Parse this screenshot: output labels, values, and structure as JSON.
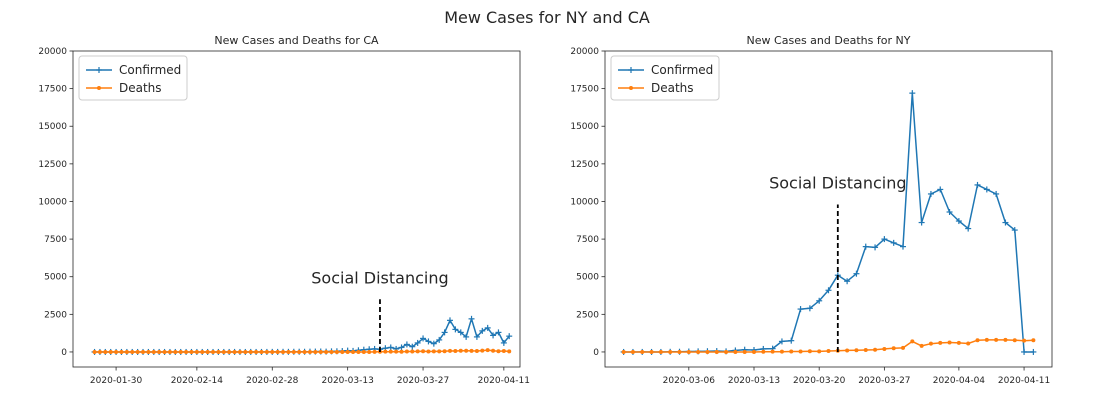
{
  "figure": {
    "suptitle": "Mew Cases for NY and CA"
  },
  "chart_data": [
    {
      "type": "line",
      "title": "New Cases and Deaths for CA",
      "xlabel": "",
      "ylabel": "",
      "ylim": [
        -1000,
        20000
      ],
      "yticks": [
        0,
        2500,
        5000,
        7500,
        10000,
        12500,
        15000,
        17500,
        20000
      ],
      "ytick_labels": [
        "0",
        "2500",
        "5000",
        "7500",
        "10000",
        "12500",
        "15000",
        "17500",
        "20000"
      ],
      "xlim": [
        "2020-01-22",
        "2020-04-14"
      ],
      "xticks": [
        "2020-01-30",
        "2020-02-14",
        "2020-02-28",
        "2020-03-13",
        "2020-03-27",
        "2020-04-11"
      ],
      "grid": false,
      "legend": "top-left",
      "annotation": {
        "text": "Social Distancing",
        "x": "2020-03-19",
        "line_from": 0,
        "line_to": 3500
      },
      "x": [
        "2020-01-26",
        "2020-01-27",
        "2020-01-28",
        "2020-01-29",
        "2020-01-30",
        "2020-01-31",
        "2020-02-01",
        "2020-02-02",
        "2020-02-03",
        "2020-02-04",
        "2020-02-05",
        "2020-02-06",
        "2020-02-07",
        "2020-02-08",
        "2020-02-09",
        "2020-02-10",
        "2020-02-11",
        "2020-02-12",
        "2020-02-13",
        "2020-02-14",
        "2020-02-15",
        "2020-02-16",
        "2020-02-17",
        "2020-02-18",
        "2020-02-19",
        "2020-02-20",
        "2020-02-21",
        "2020-02-22",
        "2020-02-23",
        "2020-02-24",
        "2020-02-25",
        "2020-02-26",
        "2020-02-27",
        "2020-02-28",
        "2020-02-29",
        "2020-03-01",
        "2020-03-02",
        "2020-03-03",
        "2020-03-04",
        "2020-03-05",
        "2020-03-06",
        "2020-03-07",
        "2020-03-08",
        "2020-03-09",
        "2020-03-10",
        "2020-03-11",
        "2020-03-12",
        "2020-03-13",
        "2020-03-14",
        "2020-03-15",
        "2020-03-16",
        "2020-03-17",
        "2020-03-18",
        "2020-03-19",
        "2020-03-20",
        "2020-03-21",
        "2020-03-22",
        "2020-03-23",
        "2020-03-24",
        "2020-03-25",
        "2020-03-26",
        "2020-03-27",
        "2020-03-28",
        "2020-03-29",
        "2020-03-30",
        "2020-03-31",
        "2020-04-01",
        "2020-04-02",
        "2020-04-03",
        "2020-04-04",
        "2020-04-05",
        "2020-04-06",
        "2020-04-07",
        "2020-04-08",
        "2020-04-09",
        "2020-04-10",
        "2020-04-11",
        "2020-04-12"
      ],
      "series": [
        {
          "name": "Confirmed",
          "color": "#1f77b4",
          "marker": "plus",
          "values": [
            0,
            0,
            0,
            0,
            0,
            0,
            0,
            0,
            0,
            0,
            0,
            0,
            0,
            0,
            0,
            0,
            0,
            0,
            0,
            0,
            0,
            0,
            0,
            0,
            0,
            0,
            2,
            0,
            0,
            3,
            0,
            1,
            2,
            5,
            4,
            10,
            8,
            12,
            15,
            13,
            20,
            25,
            30,
            22,
            40,
            45,
            60,
            90,
            70,
            110,
            150,
            180,
            200,
            180,
            250,
            300,
            200,
            300,
            500,
            350,
            600,
            900,
            700,
            550,
            800,
            1300,
            2100,
            1500,
            1300,
            1000,
            2200,
            1000,
            1400,
            1600,
            1100,
            1300,
            600,
            1050
          ]
        },
        {
          "name": "Deaths",
          "color": "#ff7f0e",
          "marker": "dot",
          "values": [
            0,
            0,
            0,
            0,
            0,
            0,
            0,
            0,
            0,
            0,
            0,
            0,
            0,
            0,
            0,
            0,
            0,
            0,
            0,
            0,
            0,
            0,
            0,
            0,
            0,
            0,
            0,
            0,
            0,
            0,
            0,
            0,
            0,
            0,
            0,
            0,
            0,
            0,
            0,
            0,
            0,
            0,
            0,
            0,
            0,
            0,
            0,
            0,
            0,
            0,
            0,
            0,
            5,
            10,
            20,
            20,
            25,
            10,
            30,
            30,
            40,
            50,
            30,
            40,
            40,
            50,
            70,
            60,
            80,
            80,
            70,
            60,
            90,
            120,
            80,
            50,
            60,
            40
          ]
        }
      ]
    },
    {
      "type": "line",
      "title": "New Cases and Deaths for NY",
      "xlabel": "",
      "ylabel": "",
      "ylim": [
        -1000,
        20000
      ],
      "yticks": [
        0,
        2500,
        5000,
        7500,
        10000,
        12500,
        15000,
        17500,
        20000
      ],
      "ytick_labels": [
        "0",
        "2500",
        "5000",
        "7500",
        "10000",
        "12500",
        "15000",
        "17500",
        "20000"
      ],
      "xlim": [
        "2020-02-26",
        "2020-04-14"
      ],
      "xticks": [
        "2020-03-06",
        "2020-03-13",
        "2020-03-20",
        "2020-03-27",
        "2020-04-04",
        "2020-04-11"
      ],
      "grid": false,
      "legend": "top-left",
      "annotation": {
        "text": "Social Distancing",
        "x": "2020-03-22",
        "line_from": 0,
        "line_to": 9800
      },
      "x": [
        "2020-02-28",
        "2020-02-29",
        "2020-03-01",
        "2020-03-02",
        "2020-03-03",
        "2020-03-04",
        "2020-03-05",
        "2020-03-06",
        "2020-03-07",
        "2020-03-08",
        "2020-03-09",
        "2020-03-10",
        "2020-03-11",
        "2020-03-12",
        "2020-03-13",
        "2020-03-14",
        "2020-03-15",
        "2020-03-16",
        "2020-03-17",
        "2020-03-18",
        "2020-03-19",
        "2020-03-20",
        "2020-03-21",
        "2020-03-22",
        "2020-03-23",
        "2020-03-24",
        "2020-03-25",
        "2020-03-26",
        "2020-03-27",
        "2020-03-28",
        "2020-03-29",
        "2020-03-30",
        "2020-03-31",
        "2020-04-01",
        "2020-04-02",
        "2020-04-03",
        "2020-04-04",
        "2020-04-05",
        "2020-04-06",
        "2020-04-07",
        "2020-04-08",
        "2020-04-09",
        "2020-04-10",
        "2020-04-11",
        "2020-04-12"
      ],
      "series": [
        {
          "name": "Confirmed",
          "color": "#1f77b4",
          "marker": "plus",
          "values": [
            0,
            0,
            1,
            0,
            0,
            10,
            15,
            30,
            40,
            50,
            60,
            40,
            100,
            150,
            130,
            200,
            220,
            700,
            750,
            2850,
            2900,
            3400,
            4100,
            5100,
            4700,
            5200,
            7000,
            6950,
            7500,
            7250,
            7000,
            17200,
            8600,
            10500,
            10800,
            9300,
            8700,
            8200,
            11100,
            10800,
            10500,
            8600,
            8100,
            0,
            0
          ]
        },
        {
          "name": "Deaths",
          "color": "#ff7f0e",
          "marker": "dot",
          "values": [
            0,
            0,
            0,
            0,
            0,
            0,
            0,
            0,
            0,
            0,
            0,
            0,
            0,
            0,
            0,
            10,
            20,
            20,
            30,
            30,
            50,
            40,
            60,
            80,
            100,
            110,
            130,
            150,
            200,
            250,
            270,
            700,
            400,
            550,
            600,
            630,
            600,
            560,
            780,
            800,
            800,
            800,
            780,
            750,
            780
          ]
        }
      ]
    }
  ]
}
